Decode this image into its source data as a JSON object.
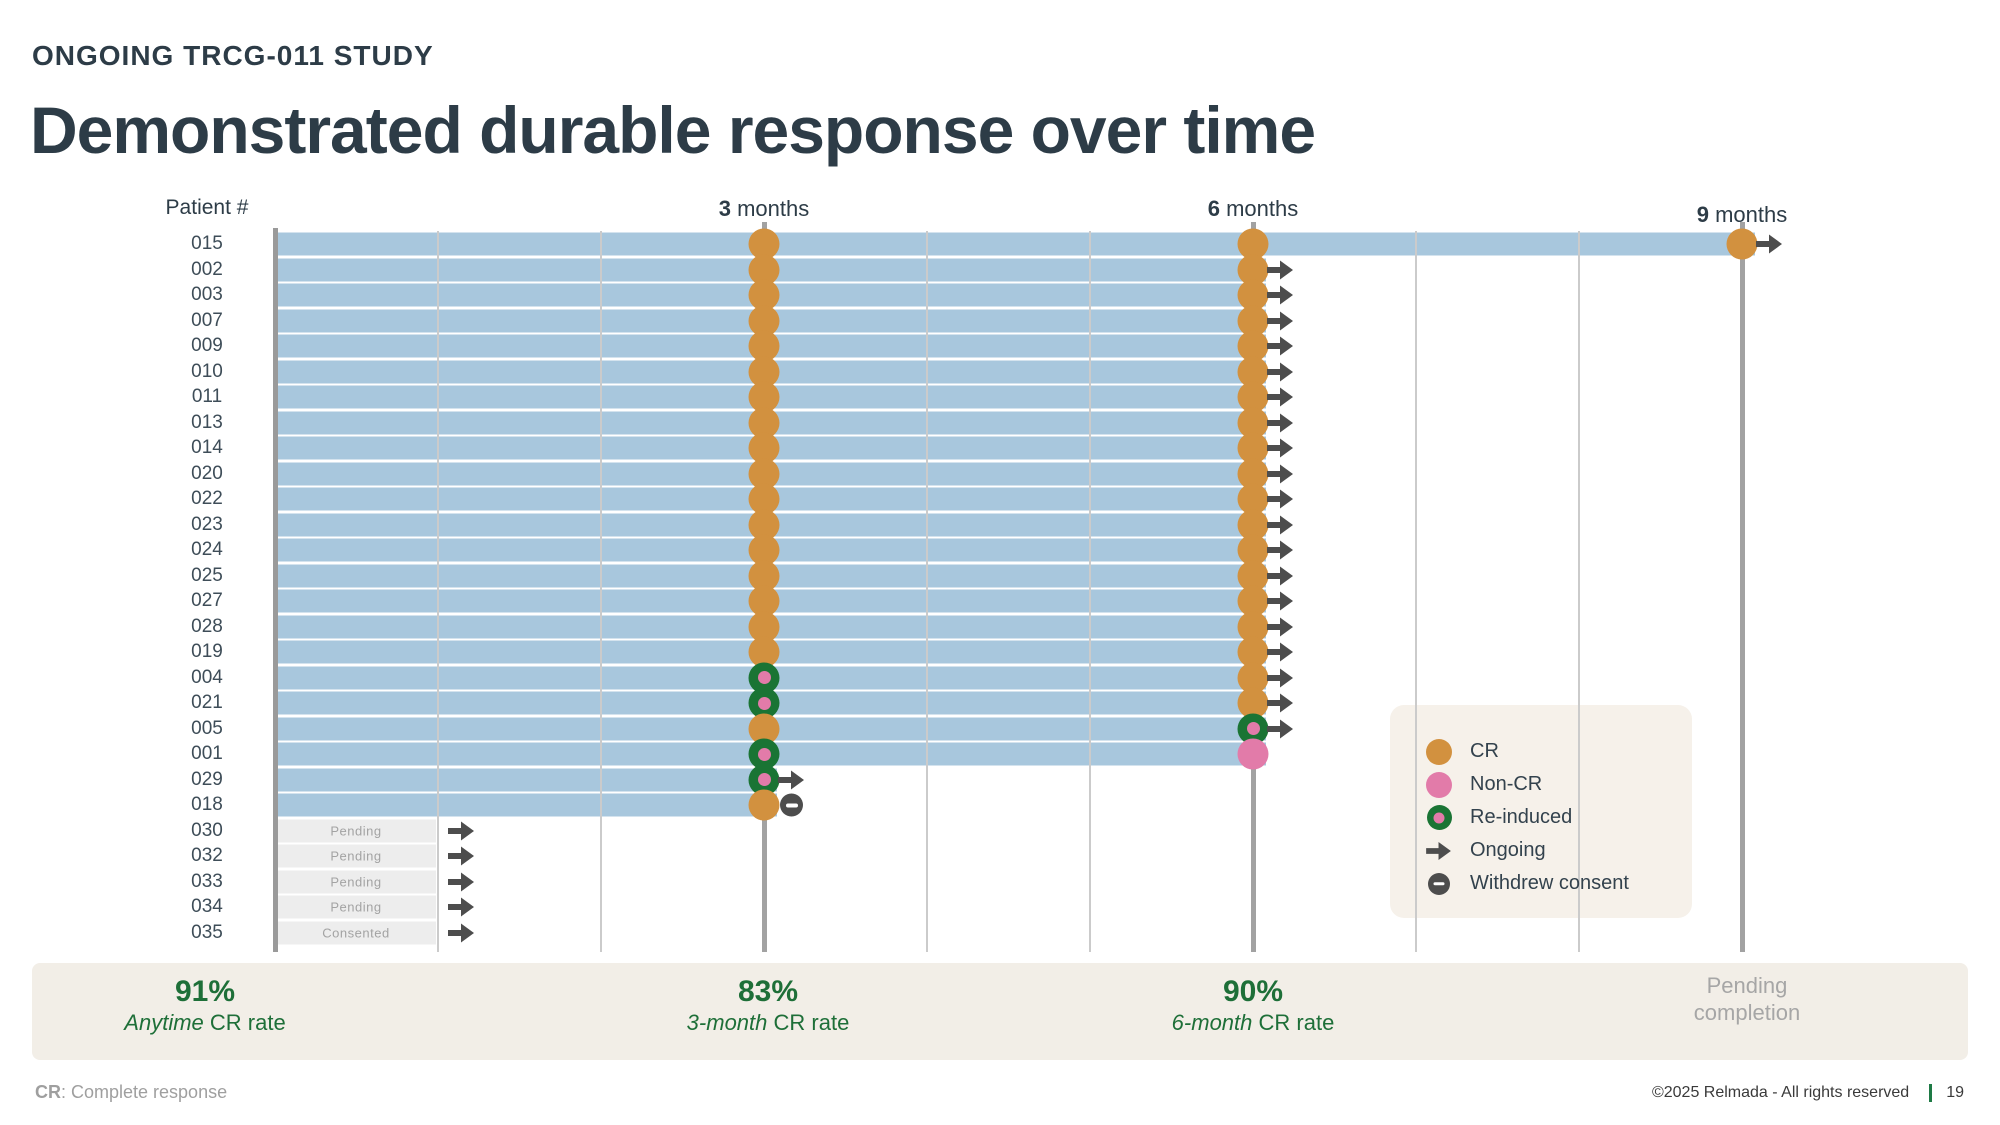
{
  "slide": {
    "eyebrow": "ONGOING TRCG-011 STUDY",
    "title": "Demonstrated durable response over time"
  },
  "chart_data": {
    "type": "swimmer",
    "title": "Demonstrated durable response over time",
    "x_axis": {
      "unit": "months",
      "range": [
        0,
        9
      ],
      "gridline_months": [
        1,
        2,
        3,
        4,
        5,
        6,
        7,
        8,
        9
      ],
      "labeled_months": [
        3,
        6,
        9
      ],
      "month_label_suffix": " months"
    },
    "patient_column_header": "Patient #",
    "marker_types": {
      "cr": "CR",
      "noncr": "Non-CR",
      "reinduced": "Re-induced",
      "ongoing": "Ongoing",
      "withdrew": "Withdrew consent"
    },
    "rows": [
      {
        "patient": "015",
        "bar_end": 9,
        "bar_style": "blue",
        "markers": [
          {
            "month": 3,
            "type": "cr"
          },
          {
            "month": 6,
            "type": "cr"
          },
          {
            "month": 9,
            "type": "cr"
          }
        ],
        "end_icon": "ongoing"
      },
      {
        "patient": "002",
        "bar_end": 6,
        "bar_style": "blue",
        "markers": [
          {
            "month": 3,
            "type": "cr"
          },
          {
            "month": 6,
            "type": "cr"
          }
        ],
        "end_icon": "ongoing"
      },
      {
        "patient": "003",
        "bar_end": 6,
        "bar_style": "blue",
        "markers": [
          {
            "month": 3,
            "type": "cr"
          },
          {
            "month": 6,
            "type": "cr"
          }
        ],
        "end_icon": "ongoing"
      },
      {
        "patient": "007",
        "bar_end": 6,
        "bar_style": "blue",
        "markers": [
          {
            "month": 3,
            "type": "cr"
          },
          {
            "month": 6,
            "type": "cr"
          }
        ],
        "end_icon": "ongoing"
      },
      {
        "patient": "009",
        "bar_end": 6,
        "bar_style": "blue",
        "markers": [
          {
            "month": 3,
            "type": "cr"
          },
          {
            "month": 6,
            "type": "cr"
          }
        ],
        "end_icon": "ongoing"
      },
      {
        "patient": "010",
        "bar_end": 6,
        "bar_style": "blue",
        "markers": [
          {
            "month": 3,
            "type": "cr"
          },
          {
            "month": 6,
            "type": "cr"
          }
        ],
        "end_icon": "ongoing"
      },
      {
        "patient": "011",
        "bar_end": 6,
        "bar_style": "blue",
        "markers": [
          {
            "month": 3,
            "type": "cr"
          },
          {
            "month": 6,
            "type": "cr"
          }
        ],
        "end_icon": "ongoing"
      },
      {
        "patient": "013",
        "bar_end": 6,
        "bar_style": "blue",
        "markers": [
          {
            "month": 3,
            "type": "cr"
          },
          {
            "month": 6,
            "type": "cr"
          }
        ],
        "end_icon": "ongoing"
      },
      {
        "patient": "014",
        "bar_end": 6,
        "bar_style": "blue",
        "markers": [
          {
            "month": 3,
            "type": "cr"
          },
          {
            "month": 6,
            "type": "cr"
          }
        ],
        "end_icon": "ongoing"
      },
      {
        "patient": "020",
        "bar_end": 6,
        "bar_style": "blue",
        "markers": [
          {
            "month": 3,
            "type": "cr"
          },
          {
            "month": 6,
            "type": "cr"
          }
        ],
        "end_icon": "ongoing"
      },
      {
        "patient": "022",
        "bar_end": 6,
        "bar_style": "blue",
        "markers": [
          {
            "month": 3,
            "type": "cr"
          },
          {
            "month": 6,
            "type": "cr"
          }
        ],
        "end_icon": "ongoing"
      },
      {
        "patient": "023",
        "bar_end": 6,
        "bar_style": "blue",
        "markers": [
          {
            "month": 3,
            "type": "cr"
          },
          {
            "month": 6,
            "type": "cr"
          }
        ],
        "end_icon": "ongoing"
      },
      {
        "patient": "024",
        "bar_end": 6,
        "bar_style": "blue",
        "markers": [
          {
            "month": 3,
            "type": "cr"
          },
          {
            "month": 6,
            "type": "cr"
          }
        ],
        "end_icon": "ongoing"
      },
      {
        "patient": "025",
        "bar_end": 6,
        "bar_style": "blue",
        "markers": [
          {
            "month": 3,
            "type": "cr"
          },
          {
            "month": 6,
            "type": "cr"
          }
        ],
        "end_icon": "ongoing"
      },
      {
        "patient": "027",
        "bar_end": 6,
        "bar_style": "blue",
        "markers": [
          {
            "month": 3,
            "type": "cr"
          },
          {
            "month": 6,
            "type": "cr"
          }
        ],
        "end_icon": "ongoing"
      },
      {
        "patient": "028",
        "bar_end": 6,
        "bar_style": "blue",
        "markers": [
          {
            "month": 3,
            "type": "cr"
          },
          {
            "month": 6,
            "type": "cr"
          }
        ],
        "end_icon": "ongoing"
      },
      {
        "patient": "019",
        "bar_end": 6,
        "bar_style": "blue",
        "markers": [
          {
            "month": 3,
            "type": "cr"
          },
          {
            "month": 6,
            "type": "cr"
          }
        ],
        "end_icon": "ongoing"
      },
      {
        "patient": "004",
        "bar_end": 6,
        "bar_style": "blue",
        "markers": [
          {
            "month": 3,
            "type": "reinduced"
          },
          {
            "month": 6,
            "type": "cr"
          }
        ],
        "end_icon": "ongoing"
      },
      {
        "patient": "021",
        "bar_end": 6,
        "bar_style": "blue",
        "markers": [
          {
            "month": 3,
            "type": "reinduced"
          },
          {
            "month": 6,
            "type": "cr"
          }
        ],
        "end_icon": "ongoing"
      },
      {
        "patient": "005",
        "bar_end": 6,
        "bar_style": "blue",
        "markers": [
          {
            "month": 3,
            "type": "cr"
          },
          {
            "month": 6,
            "type": "reinduced"
          }
        ],
        "end_icon": "ongoing"
      },
      {
        "patient": "001",
        "bar_end": 6,
        "bar_style": "blue",
        "markers": [
          {
            "month": 3,
            "type": "reinduced"
          },
          {
            "month": 6,
            "type": "noncr"
          }
        ],
        "end_icon": null
      },
      {
        "patient": "029",
        "bar_end": 3,
        "bar_style": "blue",
        "markers": [
          {
            "month": 3,
            "type": "reinduced"
          }
        ],
        "end_icon": "ongoing"
      },
      {
        "patient": "018",
        "bar_end": 3,
        "bar_style": "blue",
        "markers": [
          {
            "month": 3,
            "type": "cr"
          }
        ],
        "end_icon": "withdrew"
      },
      {
        "patient": "030",
        "bar_end": 1,
        "bar_style": "pending",
        "bar_label": "Pending",
        "markers": [],
        "end_icon": "ongoing"
      },
      {
        "patient": "032",
        "bar_end": 1,
        "bar_style": "pending",
        "bar_label": "Pending",
        "markers": [],
        "end_icon": "ongoing"
      },
      {
        "patient": "033",
        "bar_end": 1,
        "bar_style": "pending",
        "bar_label": "Pending",
        "markers": [],
        "end_icon": "ongoing"
      },
      {
        "patient": "034",
        "bar_end": 1,
        "bar_style": "pending",
        "bar_label": "Pending",
        "markers": [],
        "end_icon": "ongoing"
      },
      {
        "patient": "035",
        "bar_end": 1,
        "bar_style": "pending",
        "bar_label": "Consented",
        "markers": [],
        "end_icon": "ongoing"
      }
    ],
    "legend": [
      {
        "key": "cr",
        "label": "CR"
      },
      {
        "key": "noncr",
        "label": "Non-CR"
      },
      {
        "key": "reinduced",
        "label": "Re-induced"
      },
      {
        "key": "ongoing",
        "label": "Ongoing"
      },
      {
        "key": "withdrew",
        "label": "Withdrew consent"
      }
    ],
    "legend_position": "right-inside",
    "grid": true,
    "colors": {
      "cr": "#d2913f",
      "non_cr": "#e27ba9",
      "reinduced_ring": "#1a7434",
      "ongoing_icon": "#4d4d4d",
      "bar_blue": "#a8c7dd",
      "bar_pending": "#ededed",
      "stat_green": "#1e6f38",
      "footer_sep_green": "#1e7a45"
    }
  },
  "stats": {
    "items": [
      {
        "value": "91%",
        "label_em": "Anytime",
        "label": " CR rate",
        "muted": false
      },
      {
        "value": "83%",
        "label_em": "3-month",
        "label": " CR rate",
        "muted": false
      },
      {
        "value": "90%",
        "label_em": "6-month",
        "label": " CR rate",
        "muted": false
      },
      {
        "value": "",
        "label_em": "",
        "label": "Pending completion",
        "muted": true
      }
    ]
  },
  "footer": {
    "abbrev": "CR",
    "abbrev_def": ": Complete response",
    "copyright": "©2025 Relmada - All rights reserved",
    "page": "19"
  }
}
